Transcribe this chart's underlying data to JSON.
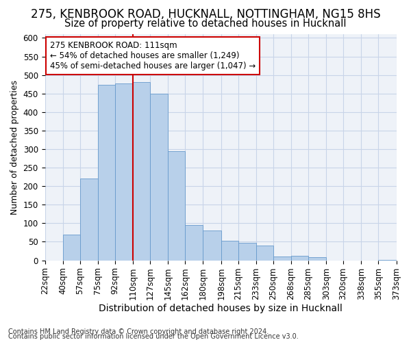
{
  "title_line1": "275, KENBROOK ROAD, HUCKNALL, NOTTINGHAM, NG15 8HS",
  "title_line2": "Size of property relative to detached houses in Hucknall",
  "xlabel": "Distribution of detached houses by size in Hucknall",
  "ylabel": "Number of detached properties",
  "footer_line1": "Contains HM Land Registry data © Crown copyright and database right 2024.",
  "footer_line2": "Contains public sector information licensed under the Open Government Licence v3.0.",
  "bins": [
    22,
    40,
    57,
    75,
    92,
    110,
    127,
    145,
    162,
    180,
    198,
    215,
    233,
    250,
    268,
    285,
    303,
    320,
    338,
    355,
    373
  ],
  "bin_labels": [
    "22sqm",
    "40sqm",
    "57sqm",
    "75sqm",
    "92sqm",
    "110sqm",
    "127sqm",
    "145sqm",
    "162sqm",
    "180sqm",
    "198sqm",
    "215sqm",
    "233sqm",
    "250sqm",
    "268sqm",
    "285sqm",
    "303sqm",
    "320sqm",
    "338sqm",
    "355sqm",
    "373sqm"
  ],
  "bar_heights": [
    0,
    70,
    220,
    473,
    478,
    480,
    450,
    295,
    95,
    80,
    53,
    47,
    40,
    10,
    12,
    8,
    0,
    0,
    0,
    2
  ],
  "bar_color": "#b8d0ea",
  "bar_edge_color": "#6699cc",
  "vline_x": 110,
  "vline_color": "#cc0000",
  "annotation_text": "275 KENBROOK ROAD: 111sqm\n← 54% of detached houses are smaller (1,249)\n45% of semi-detached houses are larger (1,047) →",
  "annotation_box_edge": "#cc0000",
  "ylim": [
    0,
    610
  ],
  "yticks": [
    0,
    50,
    100,
    150,
    200,
    250,
    300,
    350,
    400,
    450,
    500,
    550,
    600
  ],
  "background_color": "#ffffff",
  "plot_background": "#eef2f8",
  "grid_color": "#c8d4e8",
  "title1_fontsize": 12,
  "title2_fontsize": 10.5,
  "xlabel_fontsize": 10,
  "ylabel_fontsize": 9,
  "tick_fontsize": 8.5,
  "footer_fontsize": 7
}
